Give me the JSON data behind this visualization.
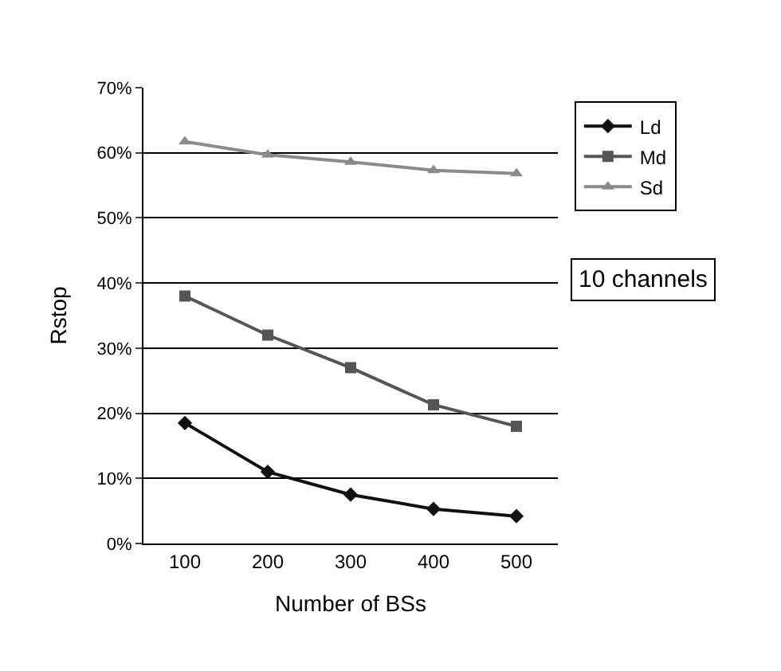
{
  "chart_data": {
    "type": "line",
    "xlabel": "Number of BSs",
    "ylabel": "Rstop",
    "categories": [
      "100",
      "200",
      "300",
      "400",
      "500"
    ],
    "series": [
      {
        "name": "Ld",
        "color": "#111111",
        "marker": "diamond",
        "values": [
          18.5,
          11,
          7.5,
          5.3,
          4.2
        ]
      },
      {
        "name": "Md",
        "color": "#555555",
        "marker": "square",
        "values": [
          38,
          32,
          27,
          21.3,
          18
        ]
      },
      {
        "name": "Sd",
        "color": "#8a8a8a",
        "marker": "triangle",
        "values": [
          61.7,
          59.7,
          58.6,
          57.3,
          56.8
        ]
      }
    ],
    "ylim": [
      0,
      70
    ],
    "yticks": [
      {
        "value": 0,
        "label": "0%"
      },
      {
        "value": 10,
        "label": "10%"
      },
      {
        "value": 20,
        "label": "20%"
      },
      {
        "value": 30,
        "label": "30%"
      },
      {
        "value": 40,
        "label": "40%"
      },
      {
        "value": 50,
        "label": "50%"
      },
      {
        "value": 60,
        "label": "60%"
      },
      {
        "value": 70,
        "label": "70%"
      }
    ],
    "grid": "y",
    "legend": "top right",
    "annotations": [
      "10 channels"
    ]
  }
}
